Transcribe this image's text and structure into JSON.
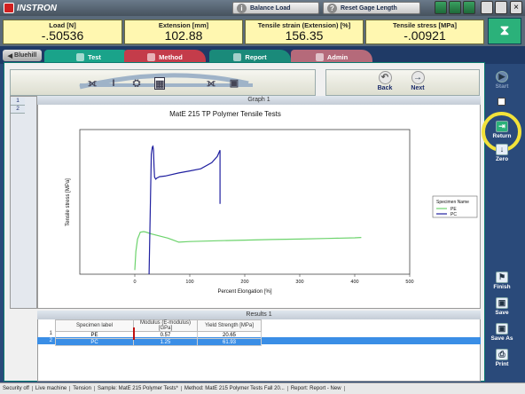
{
  "app": {
    "logo": "INSTRON"
  },
  "toolbar": {
    "balance_load": "Balance Load",
    "reset_gage": "Reset Gage Length"
  },
  "readouts": [
    {
      "label": "Load [N]",
      "value": "-.50536"
    },
    {
      "label": "Extension [mm]",
      "value": "102.88"
    },
    {
      "label": "Tensile strain (Extension) [%]",
      "value": "156.35"
    },
    {
      "label": "Tensile stress [MPa]",
      "value": "-.00921"
    }
  ],
  "tabs": {
    "bluehill": "Bluehill",
    "test": "Test",
    "method": "Method",
    "report": "Report",
    "admin": "Admin"
  },
  "nav": {
    "back": "Back",
    "next": "Next"
  },
  "specimen_rows": [
    "1",
    "2"
  ],
  "graph": {
    "header": "Graph 1"
  },
  "chart_data": {
    "type": "line",
    "title": "MatE 215 TP Polymer Tensile Tests",
    "xlabel": "Percent Elongation [%]",
    "ylabel": "Tensile stress [MPa]",
    "xlim": [
      -100,
      500
    ],
    "ylim": [
      0,
      70
    ],
    "xticks": [
      "0",
      "100",
      "200",
      "300",
      "400",
      "500"
    ],
    "grid": false,
    "legend": {
      "title": "Specimen Name",
      "position": "right"
    },
    "series": [
      {
        "name": "PE",
        "color": "#6cd36c",
        "x": [
          0,
          2,
          5,
          10,
          16,
          20,
          30,
          45,
          60,
          70,
          80,
          100,
          150,
          200,
          250,
          300,
          350,
          400,
          412
        ],
        "y": [
          2,
          11,
          17,
          20.3,
          20.6,
          20.4,
          19.5,
          18.5,
          17.5,
          16.5,
          15.5,
          15.8,
          16.2,
          16.5,
          16.8,
          17.0,
          17.3,
          17.6,
          17.8
        ]
      },
      {
        "name": "PC",
        "color": "#2020a0",
        "x": [
          26,
          28,
          30,
          32,
          33,
          34,
          35,
          36,
          38,
          40,
          45,
          55,
          80,
          100,
          120,
          140,
          150,
          155,
          155
        ],
        "y": [
          0,
          30,
          58,
          61.5,
          61.9,
          60,
          52,
          47,
          46,
          46.5,
          47.2,
          47.5,
          49,
          50,
          51,
          54,
          57,
          60,
          34
        ]
      }
    ]
  },
  "results": {
    "header": "Results 1",
    "columns": [
      "Specimen label",
      "Modulus (E-modulus) [GPa]",
      "Yield Strength [MPa]"
    ],
    "rows": [
      {
        "num": "1",
        "label": "PE",
        "modulus": "0.57",
        "yield": "20.65"
      },
      {
        "num": "2",
        "label": "PC",
        "modulus": "1.25",
        "yield": "61.93"
      }
    ]
  },
  "sidebar": {
    "start": "Start",
    "return": "Return",
    "zero": "Zero",
    "finish": "Finish",
    "save": "Save",
    "save_as": "Save As",
    "print": "Print"
  },
  "status": {
    "security": "Security off",
    "machine": "Live machine",
    "mode": "Tension",
    "sample": "Sample: MatE 215 Polymer Tests*",
    "method": "Method: MatE 215 Polymer Tests Fall 20...",
    "report": "Report: Report - New"
  }
}
